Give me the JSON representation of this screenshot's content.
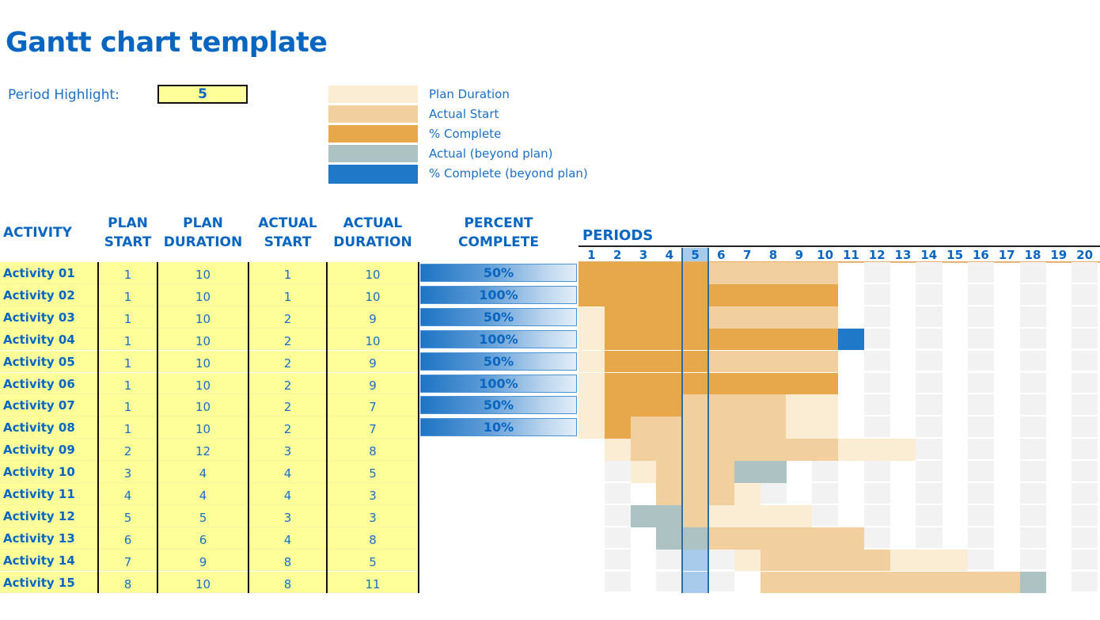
{
  "title": "Gantt chart template",
  "period_highlight": {
    "label": "Period Highlight:",
    "value": 5
  },
  "legend": [
    {
      "key": "plan",
      "label": "Plan Duration",
      "color": "#fbecd4"
    },
    {
      "key": "actual",
      "label": "Actual Start",
      "color": "#f2cf9e"
    },
    {
      "key": "complete",
      "label": "% Complete",
      "color": "#e6a84b"
    },
    {
      "key": "beyond",
      "label": "Actual (beyond plan)",
      "color": "#adc3c3"
    },
    {
      "key": "complete-beyond",
      "label": "% Complete (beyond plan)",
      "color": "#1f78c8"
    }
  ],
  "headers": {
    "activity": "ACTIVITY",
    "plan_start": [
      "PLAN",
      "START"
    ],
    "plan_duration": [
      "PLAN",
      "DURATION"
    ],
    "actual_start": [
      "ACTUAL",
      "START"
    ],
    "actual_duration": [
      "ACTUAL",
      "DURATION"
    ],
    "percent_complete": [
      "PERCENT",
      "COMPLETE"
    ],
    "periods": "PERIODS"
  },
  "periods": [
    1,
    2,
    3,
    4,
    5,
    6,
    7,
    8,
    9,
    10,
    11,
    12,
    13,
    14,
    15,
    16,
    17,
    18,
    19,
    20
  ],
  "activities": [
    {
      "name": "Activity 01",
      "plan_start": 1,
      "plan_duration": 10,
      "actual_start": 1,
      "actual_duration": 10,
      "percent": "50%",
      "pct": 0.5
    },
    {
      "name": "Activity 02",
      "plan_start": 1,
      "plan_duration": 10,
      "actual_start": 1,
      "actual_duration": 10,
      "percent": "100%",
      "pct": 1.0
    },
    {
      "name": "Activity 03",
      "plan_start": 1,
      "plan_duration": 10,
      "actual_start": 2,
      "actual_duration": 9,
      "percent": "50%",
      "pct": 0.5
    },
    {
      "name": "Activity 04",
      "plan_start": 1,
      "plan_duration": 10,
      "actual_start": 2,
      "actual_duration": 10,
      "percent": "100%",
      "pct": 1.0
    },
    {
      "name": "Activity 05",
      "plan_start": 1,
      "plan_duration": 10,
      "actual_start": 2,
      "actual_duration": 9,
      "percent": "50%",
      "pct": 0.5
    },
    {
      "name": "Activity 06",
      "plan_start": 1,
      "plan_duration": 10,
      "actual_start": 2,
      "actual_duration": 9,
      "percent": "100%",
      "pct": 1.0
    },
    {
      "name": "Activity 07",
      "plan_start": 1,
      "plan_duration": 10,
      "actual_start": 2,
      "actual_duration": 7,
      "percent": "50%",
      "pct": 0.5
    },
    {
      "name": "Activity 08",
      "plan_start": 1,
      "plan_duration": 10,
      "actual_start": 2,
      "actual_duration": 7,
      "percent": "10%",
      "pct": 0.1
    },
    {
      "name": "Activity 09",
      "plan_start": 2,
      "plan_duration": 12,
      "actual_start": 3,
      "actual_duration": 8,
      "percent": null,
      "pct": 0
    },
    {
      "name": "Activity 10",
      "plan_start": 3,
      "plan_duration": 4,
      "actual_start": 4,
      "actual_duration": 5,
      "percent": null,
      "pct": 0
    },
    {
      "name": "Activity 11",
      "plan_start": 4,
      "plan_duration": 4,
      "actual_start": 4,
      "actual_duration": 3,
      "percent": null,
      "pct": 0
    },
    {
      "name": "Activity 12",
      "plan_start": 5,
      "plan_duration": 5,
      "actual_start": 3,
      "actual_duration": 3,
      "percent": null,
      "pct": 0
    },
    {
      "name": "Activity 13",
      "plan_start": 6,
      "plan_duration": 6,
      "actual_start": 4,
      "actual_duration": 8,
      "percent": null,
      "pct": 0
    },
    {
      "name": "Activity 14",
      "plan_start": 7,
      "plan_duration": 9,
      "actual_start": 8,
      "actual_duration": 5,
      "percent": null,
      "pct": 0
    },
    {
      "name": "Activity 15",
      "plan_start": 8,
      "plan_duration": 10,
      "actual_start": 8,
      "actual_duration": 11,
      "percent": null,
      "pct": 0
    }
  ]
}
